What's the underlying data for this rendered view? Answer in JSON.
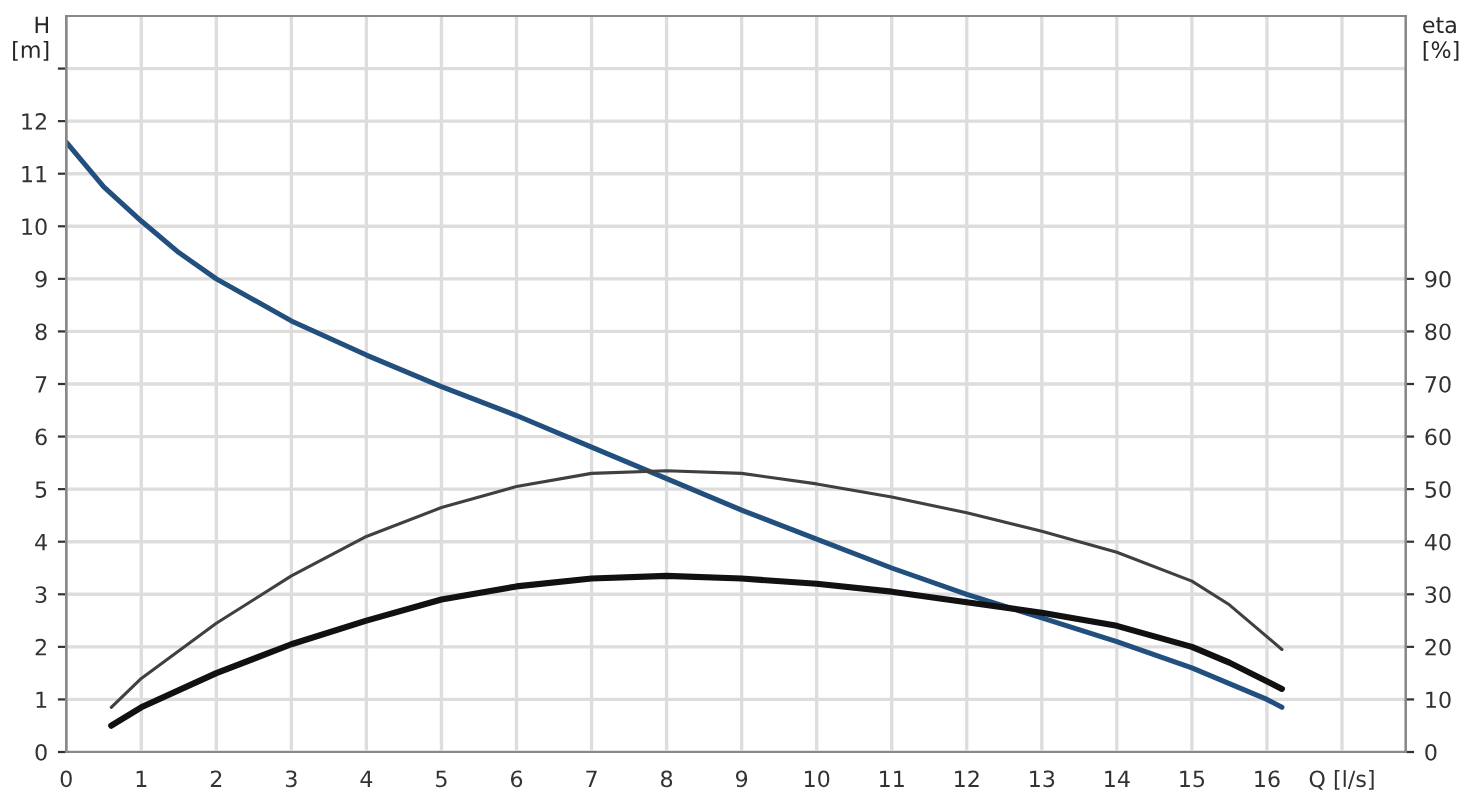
{
  "chart_data": {
    "type": "line",
    "ylabel": "H\n[m]",
    "y2label": "eta\n[%]",
    "xlim": [
      0,
      17.85
    ],
    "xticks": [
      0,
      1,
      2,
      3,
      4,
      5,
      6,
      7,
      8,
      9,
      10,
      11,
      12,
      13,
      14,
      15,
      16,
      {
        "value": 17,
        "label": "Q [l/s]"
      }
    ],
    "ylim": [
      0,
      14
    ],
    "yticks": [
      0,
      1,
      2,
      3,
      4,
      5,
      6,
      7,
      8,
      9,
      10,
      11,
      12,
      {
        "value": 13,
        "label": null
      }
    ],
    "y2lim": [
      0,
      140
    ],
    "y2ticks": [
      0,
      10,
      20,
      30,
      40,
      50,
      60,
      70,
      80,
      90
    ],
    "grid": true,
    "legend": false,
    "marker": "none",
    "line_style": "solid",
    "series": [
      {
        "color": "#21507f",
        "x": [
          0,
          0.5,
          1,
          1.5,
          2,
          3,
          4,
          5,
          6,
          7,
          8,
          9,
          10,
          11,
          12,
          13,
          14,
          15,
          16,
          16.2
        ],
        "values": [
          11.6,
          10.75,
          10.1,
          9.5,
          9.0,
          8.2,
          7.55,
          6.95,
          6.4,
          5.8,
          5.2,
          4.6,
          4.05,
          3.5,
          3.0,
          2.55,
          2.1,
          1.6,
          1.0,
          0.85
        ]
      },
      {
        "color": "#404040",
        "axis": "y2",
        "x": [
          0.6,
          1,
          2,
          3,
          4,
          5,
          6,
          7,
          8,
          9,
          10,
          11,
          12,
          13,
          14,
          15,
          15.5,
          16.2
        ],
        "values": [
          8.5,
          14,
          24.5,
          33.5,
          41,
          46.5,
          50.5,
          53,
          53.5,
          53,
          51,
          48.5,
          45.5,
          42,
          38,
          32.5,
          28,
          19.5
        ]
      },
      {
        "color": "#111111",
        "axis": "y2",
        "x": [
          0.6,
          1,
          2,
          3,
          4,
          5,
          6,
          7,
          8,
          9,
          10,
          11,
          12,
          13,
          14,
          15,
          15.5,
          16.2
        ],
        "values": [
          5,
          8.5,
          15,
          20.5,
          25,
          29,
          31.5,
          33,
          33.5,
          33,
          32,
          30.5,
          28.5,
          26.5,
          24,
          20,
          17,
          12
        ]
      }
    ]
  }
}
